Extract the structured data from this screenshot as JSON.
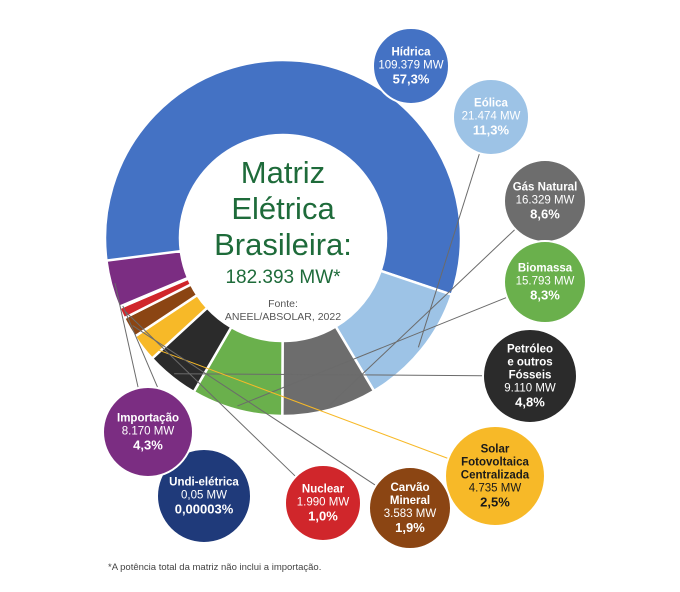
{
  "chart_data": {
    "type": "pie",
    "title": [
      "Matriz",
      "Elétrica",
      "Brasileira:"
    ],
    "total": "182.393 MW*",
    "source_label": "Fonte:",
    "source": "ANEEL/ABSOLAR, 2022",
    "footnote": "*A potência total da matriz não inclui a importação.",
    "slices": [
      {
        "name": [
          "Hídrica"
        ],
        "value_text": "109.379 MW",
        "pct_text": "57,3%",
        "value": 57.3,
        "color": "#4472c4",
        "text_color": "#ffffff"
      },
      {
        "name": [
          "Eólica"
        ],
        "value_text": "21.474 MW",
        "pct_text": "11,3%",
        "value": 11.3,
        "color": "#9dc3e6",
        "text_color": "#ffffff"
      },
      {
        "name": [
          "Gás Natural"
        ],
        "value_text": "16.329 MW",
        "pct_text": "8,6%",
        "value": 8.6,
        "color": "#6d6d6d",
        "text_color": "#ffffff"
      },
      {
        "name": [
          "Biomassa"
        ],
        "value_text": "15.793 MW",
        "pct_text": "8,3%",
        "value": 8.3,
        "color": "#6ab04c",
        "text_color": "#ffffff"
      },
      {
        "name": [
          "Petróleo",
          "e outros",
          "Fósseis"
        ],
        "value_text": "9.110 MW",
        "pct_text": "4,8%",
        "value": 4.8,
        "color": "#2b2b2b",
        "text_color": "#ffffff"
      },
      {
        "name": [
          "Solar",
          "Fotovoltaica",
          "Centralizada"
        ],
        "value_text": "4.735 MW",
        "pct_text": "2,5%",
        "value": 2.5,
        "color": "#f7b928",
        "text_color": "#1a1a1a"
      },
      {
        "name": [
          "Carvão",
          "Mineral"
        ],
        "value_text": "3.583 MW",
        "pct_text": "1,9%",
        "value": 1.9,
        "color": "#8b4513",
        "text_color": "#ffffff"
      },
      {
        "name": [
          "Nuclear"
        ],
        "value_text": "1.990 MW",
        "pct_text": "1,0%",
        "value": 1.0,
        "color": "#d0262b",
        "text_color": "#ffffff"
      },
      {
        "name": [
          "Undi-elétrica"
        ],
        "value_text": "0,05 MW",
        "pct_text": "0,00003%",
        "value": 3e-05,
        "color": "#1f3a7a",
        "text_color": "#ffffff"
      },
      {
        "name": [
          "Importação"
        ],
        "value_text": "8.170 MW",
        "pct_text": "4,3%",
        "value": 4.3,
        "color": "#7b2d82",
        "text_color": "#ffffff"
      }
    ]
  }
}
